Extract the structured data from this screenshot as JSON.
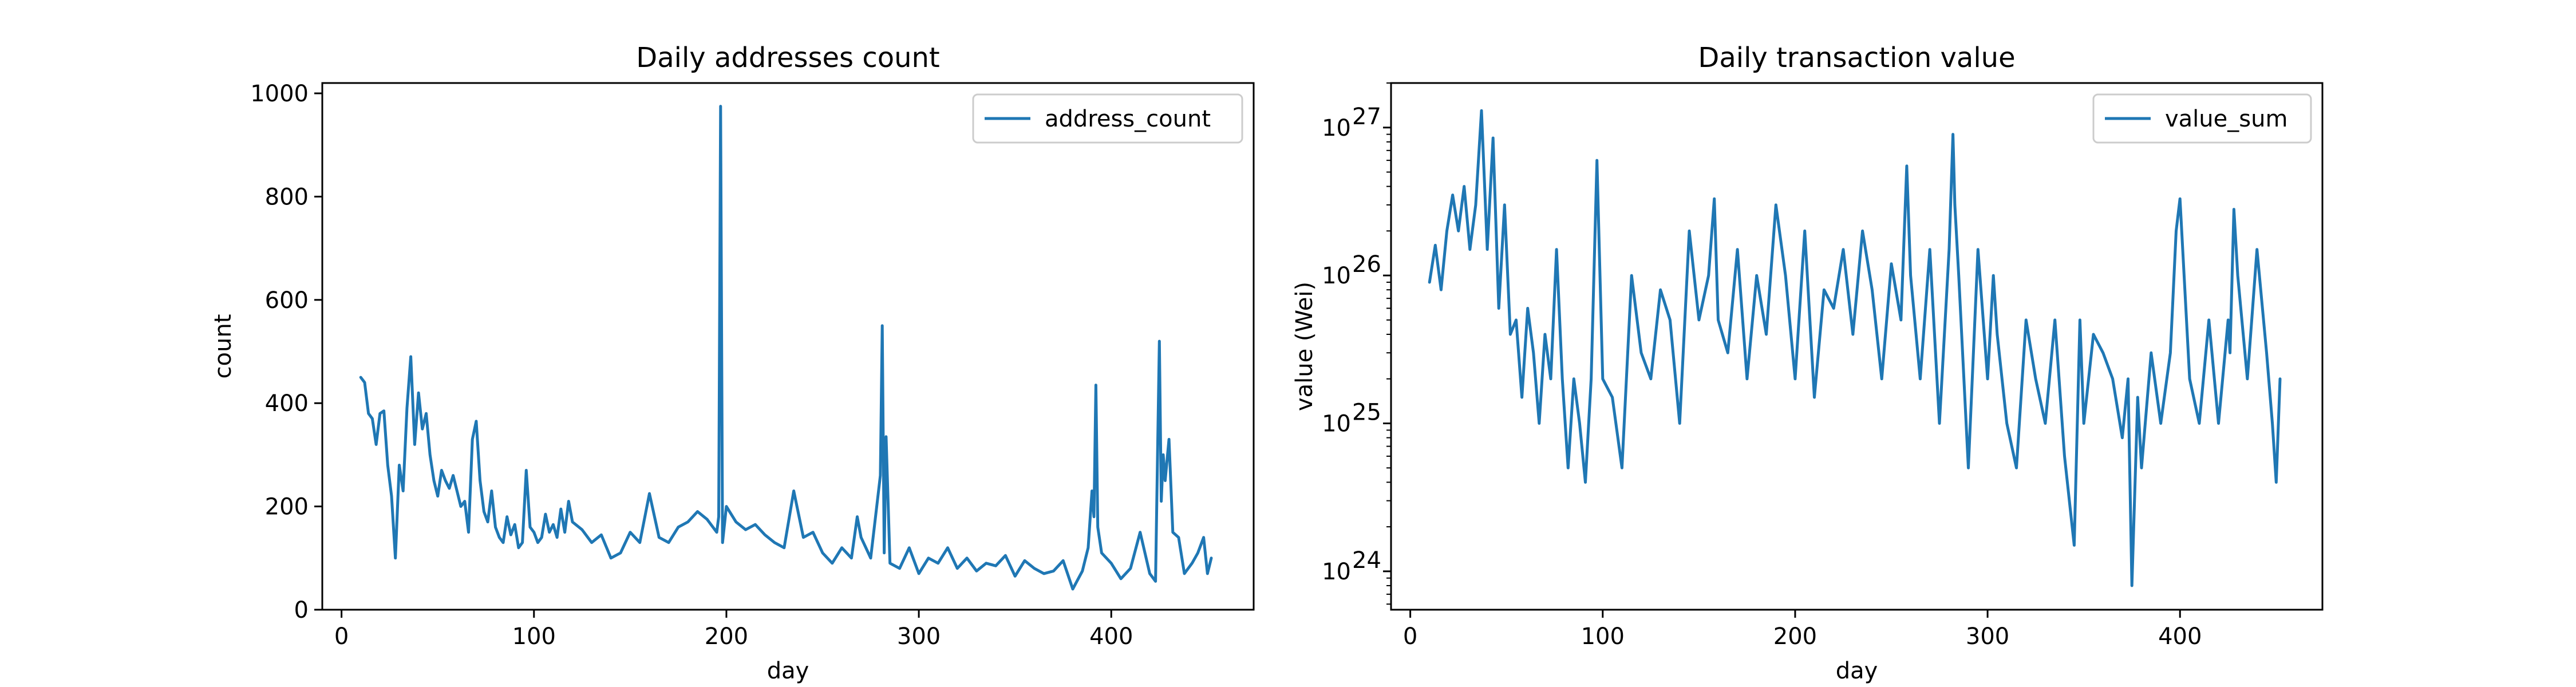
{
  "chart_data": [
    {
      "type": "line",
      "title": "Daily addresses count",
      "xlabel": "day",
      "ylabel": "count",
      "xlim": [
        -10,
        474
      ],
      "ylim": [
        0,
        1020
      ],
      "xticks": [
        0,
        100,
        200,
        300,
        400
      ],
      "yticks": [
        0,
        200,
        400,
        600,
        800,
        1000
      ],
      "yscale": "linear",
      "legend": "top-right",
      "grid": false,
      "color": "#1f77b4",
      "series": [
        {
          "name": "address_count",
          "x": [
            10,
            12,
            14,
            16,
            18,
            20,
            22,
            24,
            26,
            28,
            30,
            32,
            34,
            36,
            38,
            40,
            42,
            44,
            46,
            48,
            50,
            52,
            54,
            56,
            58,
            60,
            62,
            64,
            66,
            68,
            70,
            72,
            74,
            76,
            78,
            80,
            82,
            84,
            86,
            88,
            90,
            92,
            94,
            96,
            98,
            100,
            102,
            104,
            106,
            108,
            110,
            112,
            114,
            116,
            118,
            120,
            125,
            130,
            135,
            140,
            145,
            150,
            155,
            160,
            165,
            170,
            175,
            180,
            185,
            190,
            193,
            195,
            196,
            197,
            198,
            200,
            205,
            210,
            215,
            220,
            225,
            230,
            235,
            240,
            245,
            250,
            255,
            260,
            265,
            268,
            270,
            275,
            280,
            281,
            282,
            283,
            285,
            290,
            295,
            300,
            305,
            310,
            315,
            320,
            325,
            330,
            335,
            340,
            345,
            350,
            355,
            360,
            365,
            370,
            375,
            380,
            385,
            388,
            390,
            391,
            392,
            393,
            395,
            400,
            405,
            410,
            415,
            420,
            423,
            424,
            425,
            426,
            427,
            428,
            430,
            432,
            435,
            438,
            440,
            442,
            445,
            448,
            450,
            452
          ],
          "y": [
            450,
            440,
            380,
            370,
            320,
            380,
            385,
            280,
            220,
            100,
            280,
            230,
            390,
            490,
            320,
            420,
            350,
            380,
            300,
            250,
            220,
            270,
            250,
            235,
            260,
            230,
            200,
            210,
            150,
            330,
            365,
            250,
            190,
            170,
            230,
            160,
            140,
            130,
            180,
            145,
            165,
            120,
            130,
            270,
            160,
            150,
            130,
            140,
            185,
            150,
            165,
            140,
            195,
            150,
            210,
            170,
            155,
            130,
            145,
            100,
            110,
            150,
            130,
            225,
            140,
            130,
            160,
            170,
            190,
            175,
            160,
            150,
            180,
            975,
            130,
            200,
            170,
            155,
            165,
            145,
            130,
            120,
            230,
            140,
            150,
            110,
            90,
            120,
            100,
            180,
            140,
            100,
            260,
            550,
            110,
            335,
            90,
            80,
            120,
            70,
            100,
            90,
            120,
            80,
            100,
            75,
            90,
            85,
            105,
            65,
            95,
            80,
            70,
            75,
            95,
            40,
            75,
            120,
            230,
            180,
            435,
            160,
            110,
            90,
            60,
            80,
            150,
            70,
            55,
            285,
            520,
            210,
            300,
            250,
            330,
            150,
            140,
            70,
            80,
            90,
            110,
            140,
            70,
            100
          ]
        }
      ]
    },
    {
      "type": "line",
      "title": "Daily transaction value",
      "xlabel": "day",
      "ylabel": "value (Wei)",
      "xlim": [
        -10,
        474
      ],
      "ylim": [
        5.5e+23,
        2e+27
      ],
      "xticks": [
        0,
        100,
        200,
        300,
        400
      ],
      "yticks": [
        1e+24,
        1e+25,
        1e+26,
        1e+27
      ],
      "ytick_labels": [
        "10",
        "10",
        "10",
        "10"
      ],
      "ytick_exponents": [
        "24",
        "25",
        "26",
        "27"
      ],
      "yscale": "log",
      "legend": "top-right",
      "grid": false,
      "color": "#1f77b4",
      "series": [
        {
          "name": "value_sum",
          "x": [
            10,
            13,
            16,
            19,
            22,
            25,
            28,
            31,
            34,
            37,
            40,
            43,
            46,
            49,
            52,
            55,
            58,
            61,
            64,
            67,
            70,
            73,
            76,
            79,
            82,
            85,
            88,
            91,
            94,
            97,
            100,
            105,
            110,
            115,
            120,
            125,
            130,
            135,
            140,
            145,
            150,
            155,
            158,
            160,
            165,
            170,
            175,
            180,
            185,
            190,
            195,
            200,
            205,
            210,
            215,
            220,
            225,
            230,
            235,
            240,
            245,
            250,
            255,
            258,
            260,
            265,
            270,
            275,
            280,
            282,
            283,
            285,
            290,
            295,
            300,
            303,
            305,
            310,
            315,
            320,
            325,
            330,
            335,
            340,
            345,
            348,
            350,
            355,
            360,
            365,
            370,
            373,
            375,
            378,
            380,
            385,
            390,
            395,
            398,
            400,
            405,
            410,
            415,
            420,
            425,
            426,
            428,
            430,
            435,
            440,
            445,
            448,
            450,
            452
          ],
          "y": [
            9e+25,
            1.6e+26,
            8e+25,
            2e+26,
            3.5e+26,
            2e+26,
            4e+26,
            1.5e+26,
            3e+26,
            1.3e+27,
            1.5e+26,
            8.5e+26,
            6e+25,
            3e+26,
            4e+25,
            5e+25,
            1.5e+25,
            6e+25,
            3e+25,
            1e+25,
            4e+25,
            2e+25,
            1.5e+26,
            2e+25,
            5e+24,
            2e+25,
            1e+25,
            4e+24,
            2e+25,
            6e+26,
            2e+25,
            1.5e+25,
            5e+24,
            1e+26,
            3e+25,
            2e+25,
            8e+25,
            5e+25,
            1e+25,
            2e+26,
            5e+25,
            1e+26,
            3.3e+26,
            5e+25,
            3e+25,
            1.5e+26,
            2e+25,
            1e+26,
            4e+25,
            3e+26,
            1e+26,
            2e+25,
            2e+26,
            1.5e+25,
            8e+25,
            6e+25,
            1.5e+26,
            4e+25,
            2e+26,
            8e+25,
            2e+25,
            1.2e+26,
            5e+25,
            5.5e+26,
            1e+26,
            2e+25,
            1.5e+26,
            1e+25,
            1.5e+26,
            9e+26,
            3e+26,
            1e+26,
            5e+24,
            1.5e+26,
            2e+25,
            1e+26,
            4e+25,
            1e+25,
            5e+24,
            5e+25,
            2e+25,
            1e+25,
            5e+25,
            6e+24,
            1.5e+24,
            5e+25,
            1e+25,
            4e+25,
            3e+25,
            2e+25,
            8e+24,
            2e+25,
            8e+23,
            1.5e+25,
            5e+24,
            3e+25,
            1e+25,
            3e+25,
            2e+26,
            3.3e+26,
            2e+25,
            1e+25,
            5e+25,
            1e+25,
            5e+25,
            3e+25,
            2.8e+26,
            1e+26,
            2e+25,
            1.5e+26,
            3e+25,
            1e+25,
            4e+24,
            2e+25
          ]
        }
      ]
    }
  ]
}
